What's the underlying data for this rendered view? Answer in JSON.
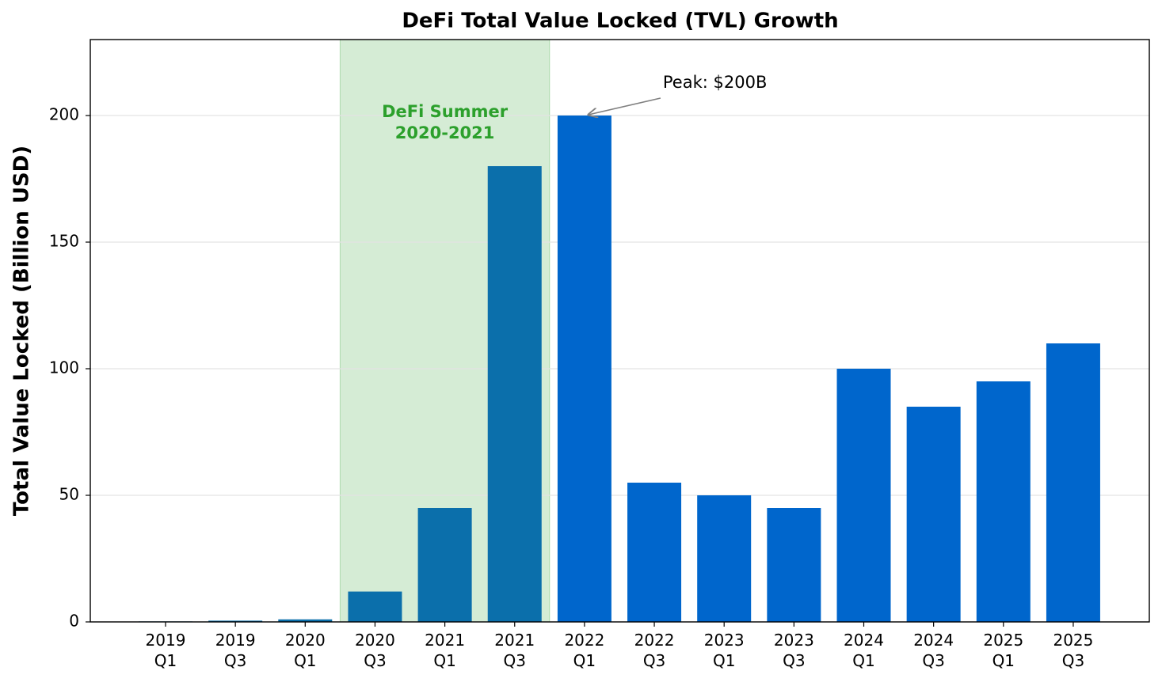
{
  "chart_data": {
    "type": "bar",
    "title": "DeFi Total Value Locked (TVL) Growth",
    "y_label": "Total Value Locked (Billion USD)",
    "categories": [
      "2019\nQ1",
      "2019\nQ3",
      "2020\nQ1",
      "2020\nQ3",
      "2021\nQ1",
      "2021\nQ3",
      "2022\nQ1",
      "2022\nQ3",
      "2023\nQ1",
      "2023\nQ3",
      "2024\nQ1",
      "2024\nQ3",
      "2025\nQ1",
      "2025\nQ3"
    ],
    "values": [
      0.2,
      0.5,
      1,
      12,
      45,
      180,
      200,
      55,
      50,
      45,
      100,
      85,
      95,
      110
    ],
    "colors": [
      "#0b6fab",
      "#0b6fab",
      "#0b6fab",
      "#0b6fab",
      "#0b6fab",
      "#0b6fab",
      "#0066cc",
      "#0066cc",
      "#0066cc",
      "#0066cc",
      "#0066cc",
      "#0066cc",
      "#0066cc",
      "#0066cc"
    ],
    "ylim": [
      0,
      230
    ],
    "yticks": [
      0,
      50,
      100,
      150,
      200
    ],
    "grid": true,
    "highlight": {
      "label": "DeFi Summer\n2020-2021",
      "from": 2.5,
      "to": 5.5,
      "color": "#2ca02c"
    },
    "annotation": {
      "text": "Peak: $200B",
      "target": 6
    }
  }
}
